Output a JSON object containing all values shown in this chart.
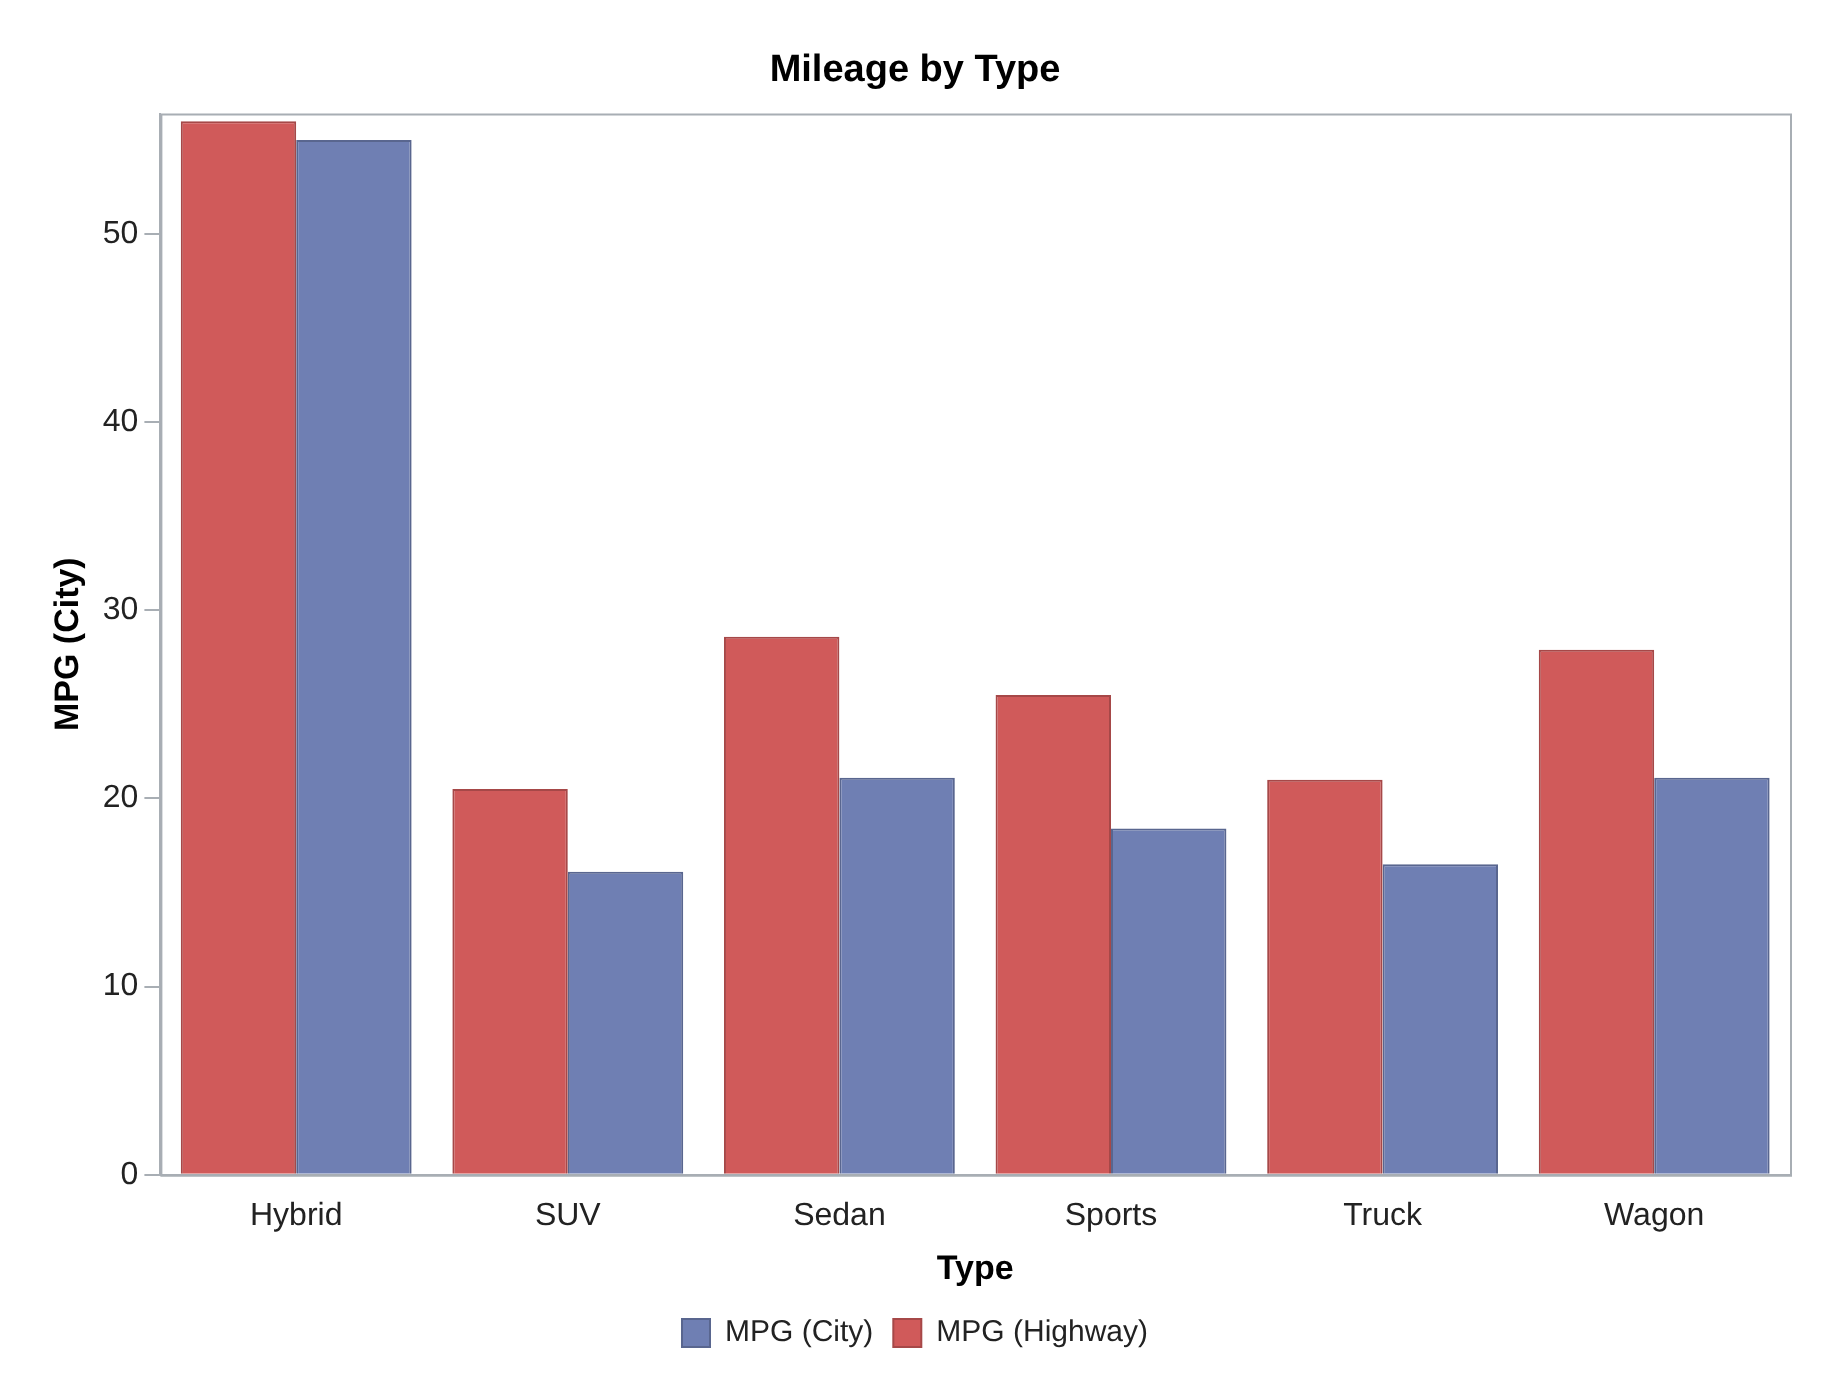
{
  "chart_data": {
    "type": "bar",
    "title": "Mileage by Type",
    "xlabel": "Type",
    "ylabel": "MPG (City)",
    "categories": [
      "Hybrid",
      "SUV",
      "Sedan",
      "Sports",
      "Truck",
      "Wagon"
    ],
    "series": [
      {
        "name": "MPG (City)",
        "color": "#6f7fb3",
        "values": [
          55.0,
          16.1,
          21.1,
          18.4,
          16.5,
          21.1
        ]
      },
      {
        "name": "MPG (Highway)",
        "color": "#d05a5a",
        "values": [
          56.0,
          20.5,
          28.6,
          25.5,
          21.0,
          27.9
        ]
      }
    ],
    "ylim": [
      0,
      56.4
    ],
    "yticks": [
      0,
      10,
      20,
      30,
      40,
      50
    ],
    "legend": "bottom"
  }
}
